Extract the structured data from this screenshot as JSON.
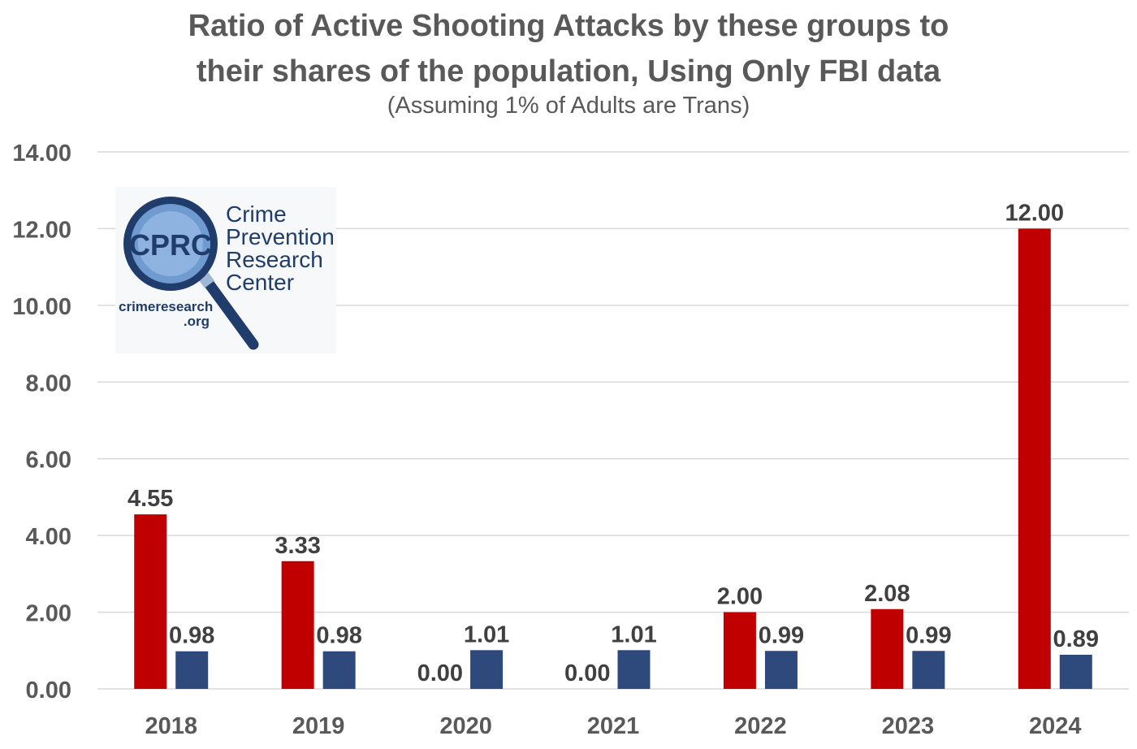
{
  "title_line1": "Ratio of Active Shooting Attacks by these groups to",
  "title_line2": "their shares of the population, Using Only FBI data",
  "subtitle": "(Assuming 1% of Adults are Trans)",
  "logo": {
    "acronym": "CPRC",
    "name_lines": [
      "Crime",
      "Prevention",
      "Research",
      "Center"
    ],
    "url_line1": "crimeresearch",
    "url_line2": ".org"
  },
  "colors": {
    "series_red": "#c00000",
    "series_blue": "#2e4a7d",
    "grid": "#d9d9d9",
    "text": "#595959",
    "label": "#404040"
  },
  "chart_data": {
    "type": "bar",
    "title": "Ratio of Active Shooting Attacks by these groups to their shares of the population, Using Only FBI data",
    "subtitle": "(Assuming 1% of Adults are Trans)",
    "categories": [
      "2018",
      "2019",
      "2020",
      "2021",
      "2022",
      "2023",
      "2024"
    ],
    "series": [
      {
        "color": "#c00000",
        "values": [
          4.55,
          3.33,
          0.0,
          0.0,
          2.0,
          2.08,
          12.0
        ],
        "labels": [
          "4.55",
          "3.33",
          "0.00",
          "0.00",
          "2.00",
          "2.08",
          "12.00"
        ]
      },
      {
        "color": "#2e4a7d",
        "values": [
          0.98,
          0.98,
          1.01,
          1.01,
          0.99,
          0.99,
          0.89
        ],
        "labels": [
          "0.98",
          "0.98",
          "1.01",
          "1.01",
          "0.99",
          "0.99",
          "0.89"
        ]
      }
    ],
    "yticks": [
      "0.00",
      "2.00",
      "4.00",
      "6.00",
      "8.00",
      "10.00",
      "12.00",
      "14.00"
    ],
    "ylim": [
      0,
      14
    ],
    "grid": true,
    "legend": "none"
  }
}
